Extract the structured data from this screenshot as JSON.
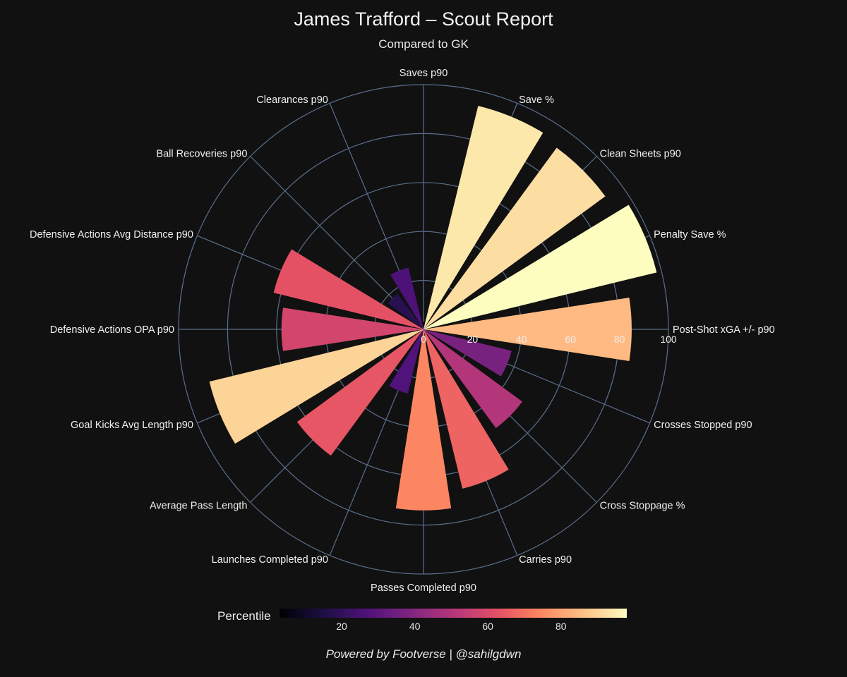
{
  "title": "James Trafford – Scout Report",
  "subtitle": "Compared to GK",
  "footer": "Powered by Footverse | @sahilgdwn",
  "colorbar": {
    "label": "Percentile",
    "ticks": [
      "20",
      "40",
      "60",
      "80"
    ],
    "tick_values": [
      20,
      40,
      60,
      80
    ],
    "range": [
      3,
      98
    ],
    "colormap": "magma"
  },
  "chart_data": {
    "type": "bar",
    "subtype": "polar",
    "title": "James Trafford – Scout Report",
    "subtitle": "Compared to GK",
    "rlim": [
      0,
      100
    ],
    "radial_ticks": [
      "0",
      "20",
      "40",
      "60",
      "80",
      "100"
    ],
    "radial_tick_values": [
      0,
      20,
      40,
      60,
      80,
      100
    ],
    "grid": true,
    "color_scale_label": "Percentile",
    "categories": [
      "Saves p90",
      "Save %",
      "Clean Sheets p90",
      "Penalty Save %",
      "Post-Shot xGA +/- p90",
      "Crosses Stopped p90",
      "Cross Stoppage %",
      "Carries p90",
      "Passes Completed p90",
      "Launches Completed p90",
      "Average Pass Length",
      "Goal Kicks Avg Length p90",
      "Defensive Actions OPA p90",
      "Defensive Actions Avg Distance p90",
      "Ball Recoveries p90",
      "Clearances p90"
    ],
    "values": [
      3,
      94,
      92,
      98,
      85,
      37,
      50,
      67,
      74,
      27,
      64,
      90,
      58,
      63,
      18,
      26
    ]
  }
}
